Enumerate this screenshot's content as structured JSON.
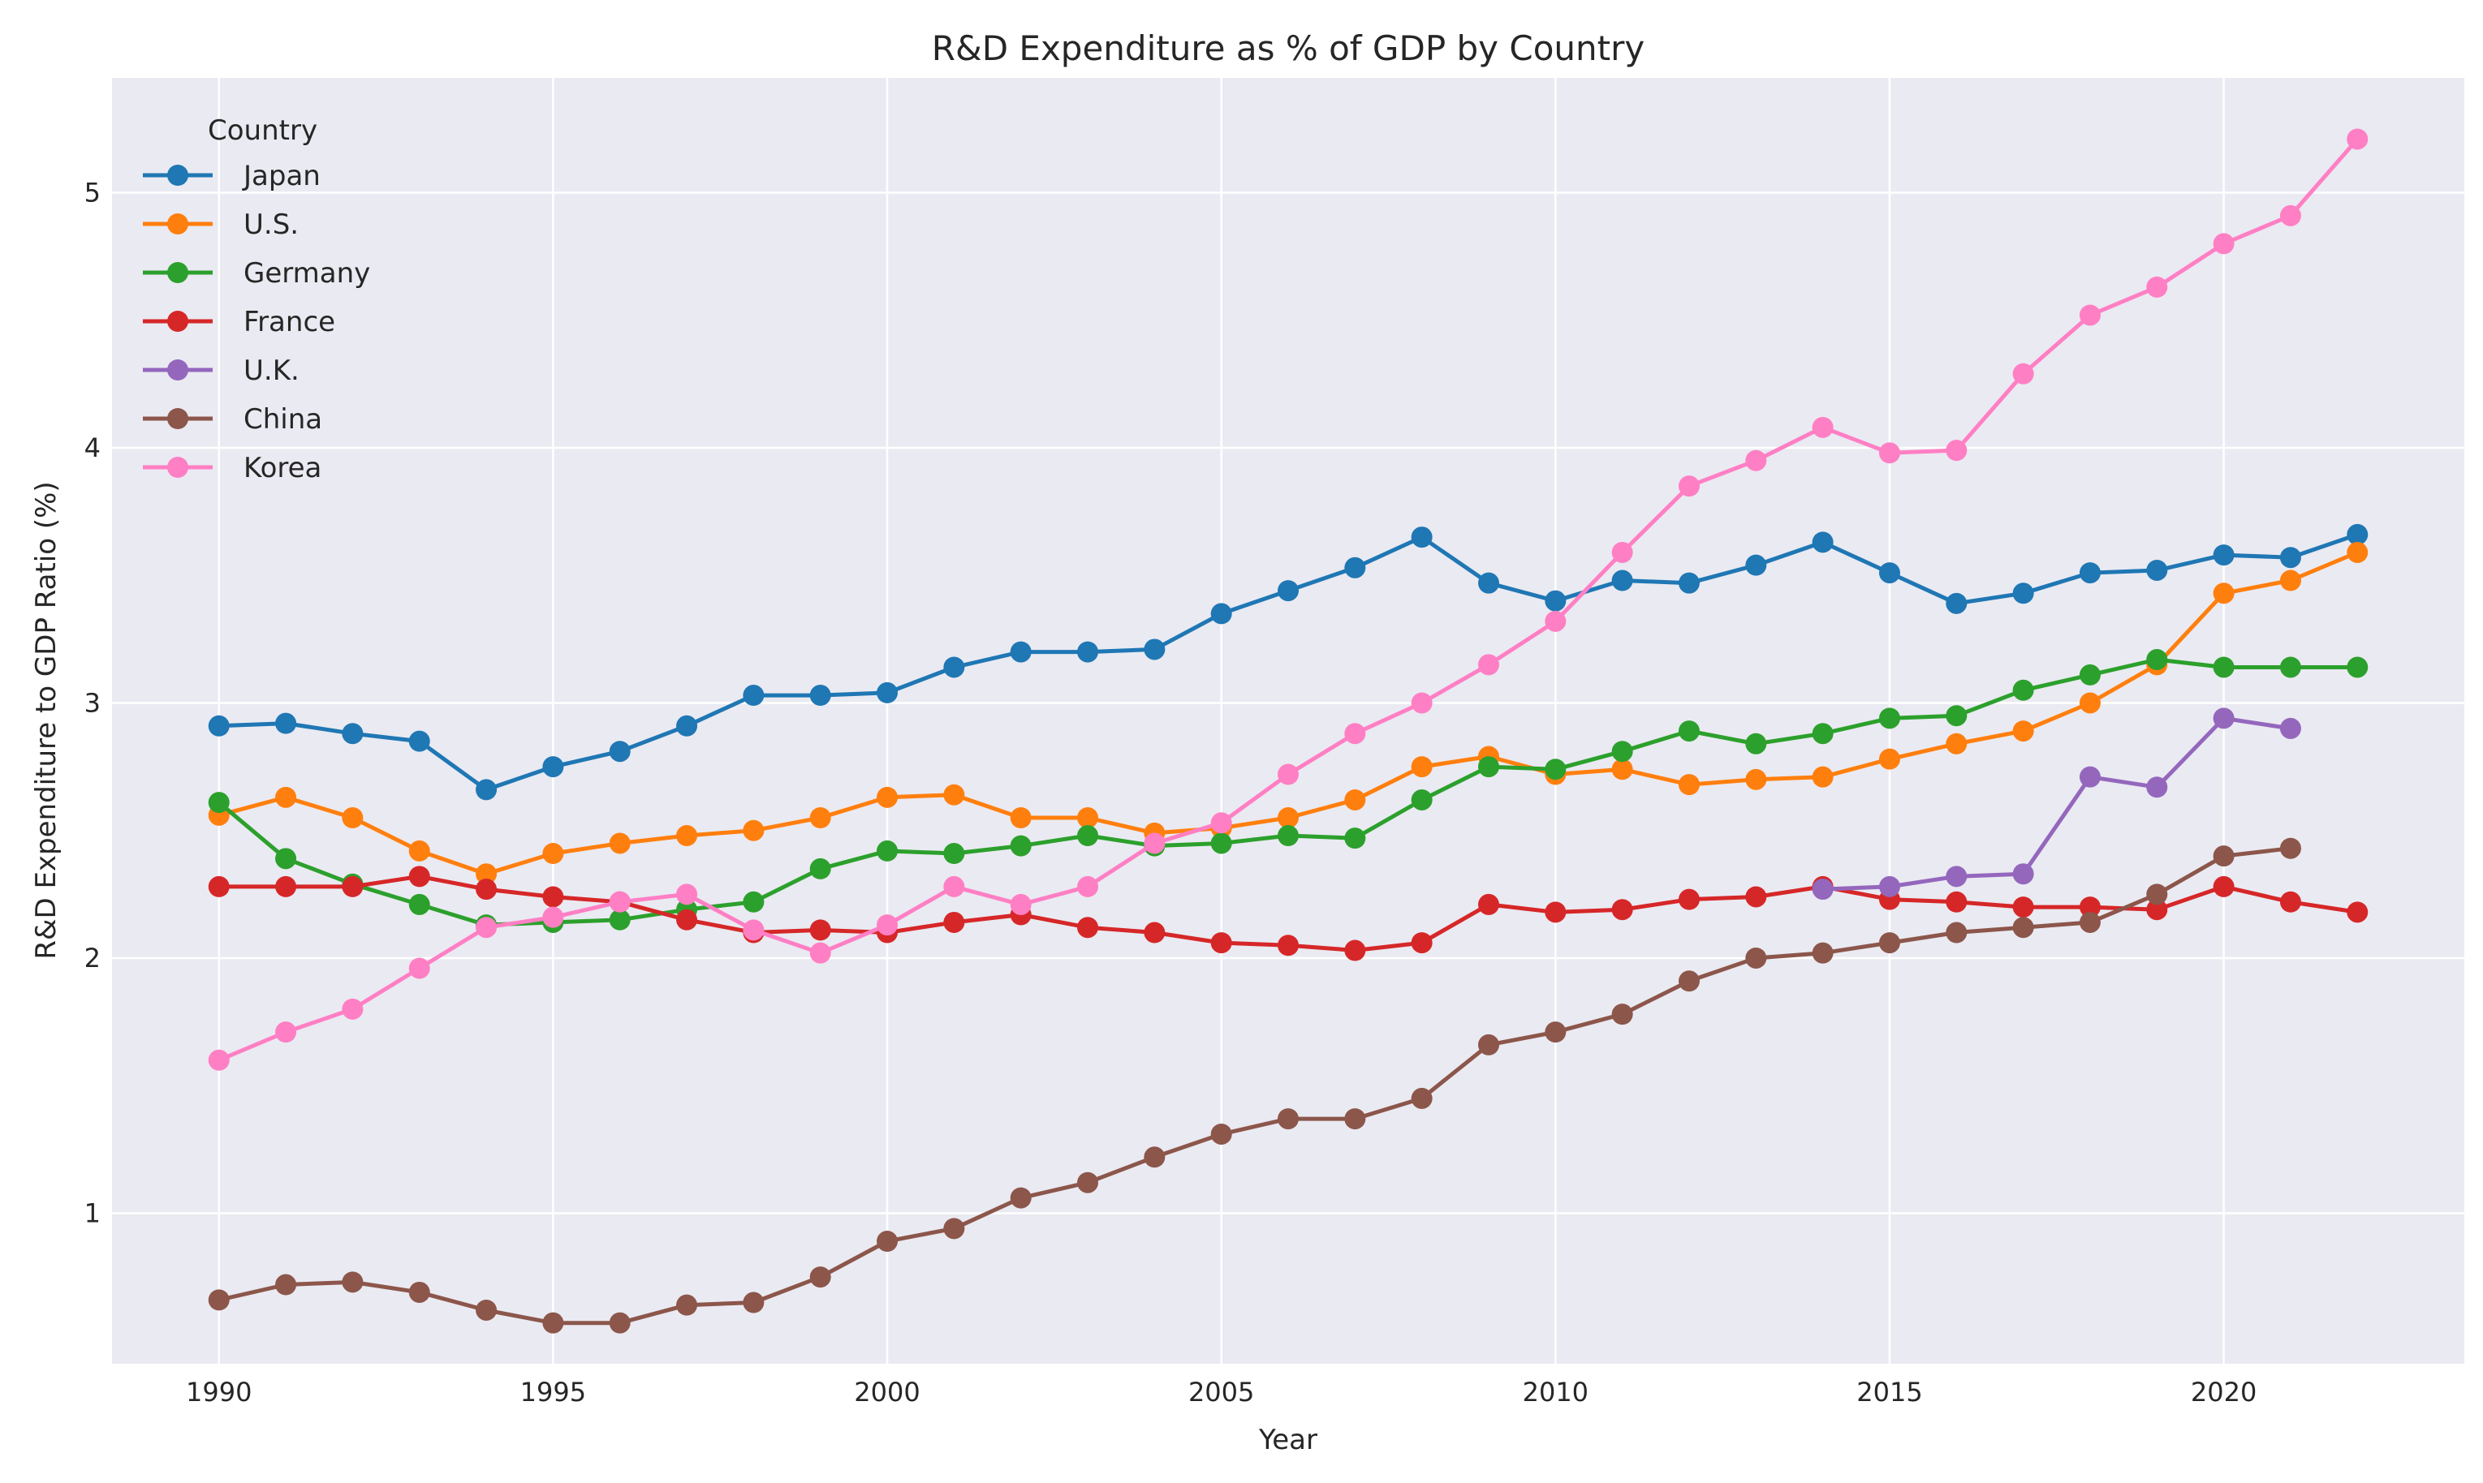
{
  "chart_data": {
    "type": "line",
    "title": "R&D Expenditure as % of GDP by Country",
    "xlabel": "Year",
    "ylabel": "R&D Expenditure to GDP Ratio (%)",
    "xlim": [
      1988.4,
      2023.6
    ],
    "ylim": [
      0.41,
      5.45
    ],
    "xticks": [
      1990,
      1995,
      2000,
      2005,
      2010,
      2015,
      2020
    ],
    "yticks": [
      1,
      2,
      3,
      4,
      5
    ],
    "grid": true,
    "legend": {
      "title": "Country",
      "position": "top-left"
    },
    "series": [
      {
        "name": "Japan",
        "color": "#1f77b4",
        "x": [
          1990,
          1991,
          1992,
          1993,
          1994,
          1995,
          1996,
          1997,
          1998,
          1999,
          2000,
          2001,
          2002,
          2003,
          2004,
          2005,
          2006,
          2007,
          2008,
          2009,
          2010,
          2011,
          2012,
          2013,
          2014,
          2015,
          2016,
          2017,
          2018,
          2019,
          2020,
          2021,
          2022
        ],
        "values": [
          2.91,
          2.92,
          2.88,
          2.85,
          2.66,
          2.75,
          2.81,
          2.91,
          3.03,
          3.03,
          3.04,
          3.14,
          3.2,
          3.2,
          3.21,
          3.35,
          3.44,
          3.53,
          3.65,
          3.47,
          3.4,
          3.48,
          3.47,
          3.54,
          3.63,
          3.51,
          3.39,
          3.43,
          3.51,
          3.52,
          3.58,
          3.57,
          3.66
        ]
      },
      {
        "name": "U.S.",
        "color": "#ff7f0e",
        "x": [
          1990,
          1991,
          1992,
          1993,
          1994,
          1995,
          1996,
          1997,
          1998,
          1999,
          2000,
          2001,
          2002,
          2003,
          2004,
          2005,
          2006,
          2007,
          2008,
          2009,
          2010,
          2011,
          2012,
          2013,
          2014,
          2015,
          2016,
          2017,
          2018,
          2019,
          2020,
          2021,
          2022
        ],
        "values": [
          2.56,
          2.63,
          2.55,
          2.42,
          2.33,
          2.41,
          2.45,
          2.48,
          2.5,
          2.55,
          2.63,
          2.64,
          2.55,
          2.55,
          2.49,
          2.51,
          2.55,
          2.62,
          2.75,
          2.79,
          2.72,
          2.74,
          2.68,
          2.7,
          2.71,
          2.78,
          2.84,
          2.89,
          3.0,
          3.15,
          3.43,
          3.48,
          3.59
        ]
      },
      {
        "name": "Germany",
        "color": "#2ca02c",
        "x": [
          1990,
          1991,
          1992,
          1993,
          1994,
          1995,
          1996,
          1997,
          1998,
          1999,
          2000,
          2001,
          2002,
          2003,
          2004,
          2005,
          2006,
          2007,
          2008,
          2009,
          2010,
          2011,
          2012,
          2013,
          2014,
          2015,
          2016,
          2017,
          2018,
          2019,
          2020,
          2021,
          2022
        ],
        "values": [
          2.61,
          2.39,
          2.29,
          2.21,
          2.13,
          2.14,
          2.15,
          2.19,
          2.22,
          2.35,
          2.42,
          2.41,
          2.44,
          2.48,
          2.44,
          2.45,
          2.48,
          2.47,
          2.62,
          2.75,
          2.74,
          2.81,
          2.89,
          2.84,
          2.88,
          2.94,
          2.95,
          3.05,
          3.11,
          3.17,
          3.14,
          3.14,
          3.14
        ]
      },
      {
        "name": "France",
        "color": "#d62728",
        "x": [
          1990,
          1991,
          1992,
          1993,
          1994,
          1995,
          1996,
          1997,
          1998,
          1999,
          2000,
          2001,
          2002,
          2003,
          2004,
          2005,
          2006,
          2007,
          2008,
          2009,
          2010,
          2011,
          2012,
          2013,
          2014,
          2015,
          2016,
          2017,
          2018,
          2019,
          2020,
          2021,
          2022
        ],
        "values": [
          2.28,
          2.28,
          2.28,
          2.32,
          2.27,
          2.24,
          2.22,
          2.15,
          2.1,
          2.11,
          2.1,
          2.14,
          2.17,
          2.12,
          2.1,
          2.06,
          2.05,
          2.03,
          2.06,
          2.21,
          2.18,
          2.19,
          2.23,
          2.24,
          2.28,
          2.23,
          2.22,
          2.2,
          2.2,
          2.19,
          2.28,
          2.22,
          2.18
        ]
      },
      {
        "name": "U.K.",
        "color": "#9467bd",
        "x": [
          2014,
          2015,
          2016,
          2017,
          2018,
          2019,
          2020,
          2021
        ],
        "values": [
          2.27,
          2.28,
          2.32,
          2.33,
          2.71,
          2.67,
          2.94,
          2.9
        ]
      },
      {
        "name": "China",
        "color": "#8c564b",
        "x": [
          1990,
          1991,
          1992,
          1993,
          1994,
          1995,
          1996,
          1997,
          1998,
          1999,
          2000,
          2001,
          2002,
          2003,
          2004,
          2005,
          2006,
          2007,
          2008,
          2009,
          2010,
          2011,
          2012,
          2013,
          2014,
          2015,
          2016,
          2017,
          2018,
          2019,
          2020,
          2021
        ],
        "values": [
          0.66,
          0.72,
          0.73,
          0.69,
          0.62,
          0.57,
          0.57,
          0.64,
          0.65,
          0.75,
          0.89,
          0.94,
          1.06,
          1.12,
          1.22,
          1.31,
          1.37,
          1.37,
          1.45,
          1.66,
          1.71,
          1.78,
          1.91,
          2.0,
          2.02,
          2.06,
          2.1,
          2.12,
          2.14,
          2.25,
          2.4,
          2.43
        ]
      },
      {
        "name": "Korea",
        "color": "#ff7fc4",
        "x": [
          1990,
          1991,
          1992,
          1993,
          1994,
          1995,
          1996,
          1997,
          1998,
          1999,
          2000,
          2001,
          2002,
          2003,
          2004,
          2005,
          2006,
          2007,
          2008,
          2009,
          2010,
          2011,
          2012,
          2013,
          2014,
          2015,
          2016,
          2017,
          2018,
          2019,
          2020,
          2021,
          2022
        ],
        "values": [
          1.6,
          1.71,
          1.8,
          1.96,
          2.12,
          2.16,
          2.22,
          2.25,
          2.11,
          2.02,
          2.13,
          2.28,
          2.21,
          2.28,
          2.45,
          2.53,
          2.72,
          2.88,
          3.0,
          3.15,
          3.32,
          3.59,
          3.85,
          3.95,
          4.08,
          3.98,
          3.99,
          4.29,
          4.52,
          4.63,
          4.8,
          4.91,
          5.21
        ]
      }
    ]
  }
}
